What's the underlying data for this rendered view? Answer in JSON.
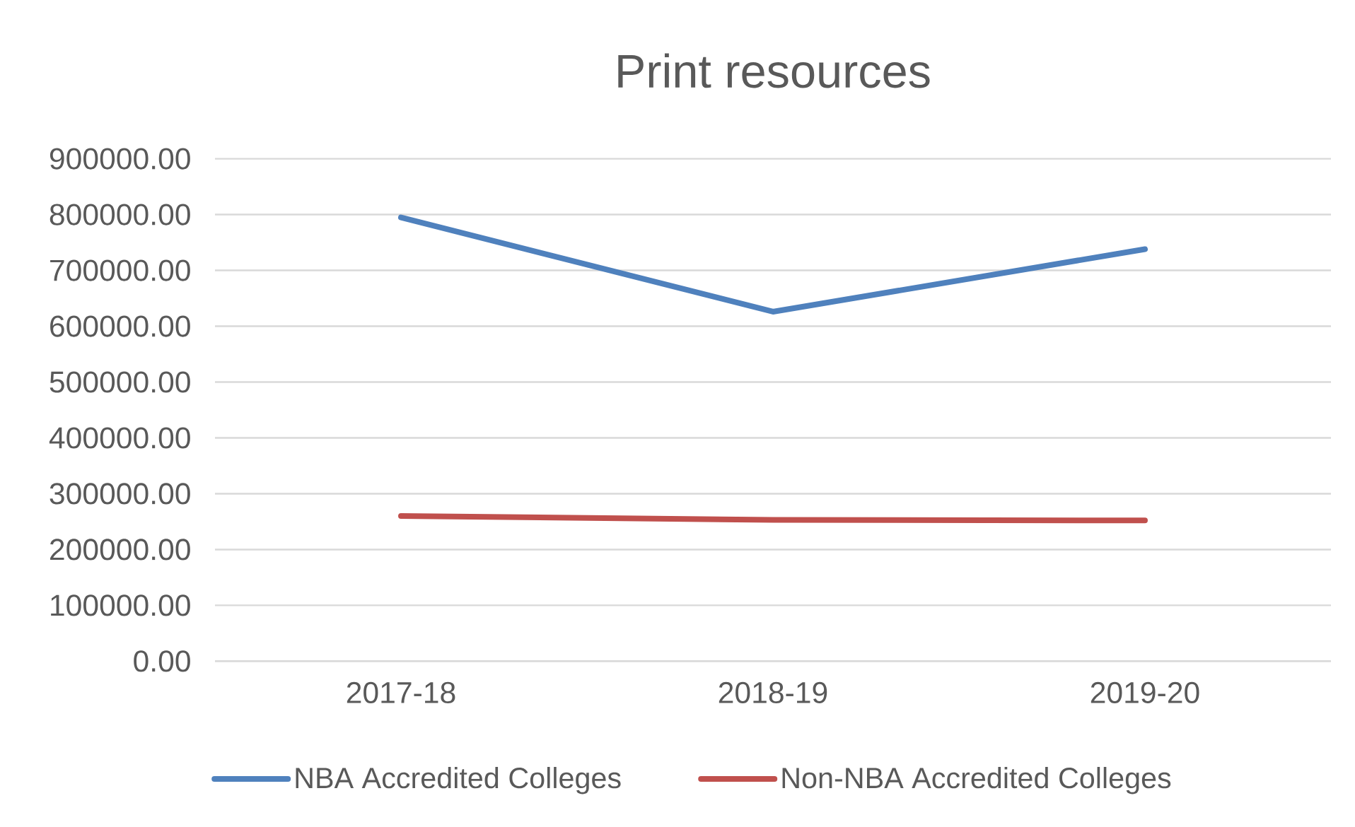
{
  "chart_data": {
    "type": "line",
    "title": "Print resources",
    "categories": [
      "2017-18",
      "2018-19",
      "2019-20"
    ],
    "series": [
      {
        "name": "NBA Accredited Colleges",
        "color": "#4f81bd",
        "values": [
          795000,
          626000,
          738000
        ]
      },
      {
        "name": "Non-NBA Accredited Colleges",
        "color": "#c0504d",
        "values": [
          260000,
          253000,
          252000
        ]
      }
    ],
    "ylim": [
      0,
      900000
    ],
    "yticks": [
      {
        "value": 0,
        "label": "0.00"
      },
      {
        "value": 100000,
        "label": "100000.00"
      },
      {
        "value": 200000,
        "label": "200000.00"
      },
      {
        "value": 300000,
        "label": "300000.00"
      },
      {
        "value": 400000,
        "label": "400000.00"
      },
      {
        "value": 500000,
        "label": "500000.00"
      },
      {
        "value": 600000,
        "label": "600000.00"
      },
      {
        "value": 700000,
        "label": "700000.00"
      },
      {
        "value": 800000,
        "label": "800000.00"
      },
      {
        "value": 900000,
        "label": "900000.00"
      }
    ],
    "grid": "y",
    "legend": "bottom"
  }
}
